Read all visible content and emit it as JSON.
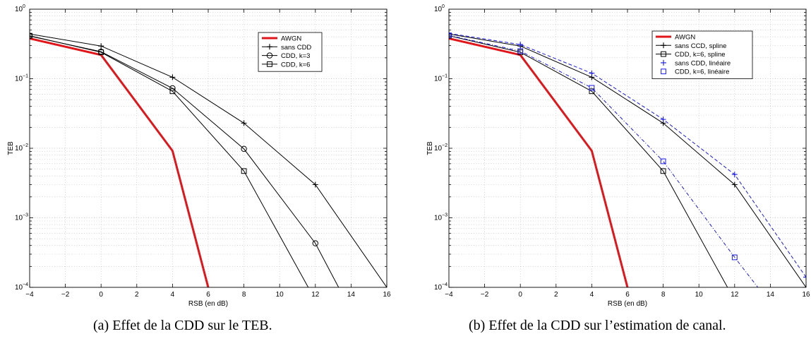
{
  "captions": {
    "a": "(a) Effet de la CDD sur le TEB.",
    "b": "(b) Effet de la CDD sur l’estimation de canal."
  },
  "chart_data": [
    {
      "type": "line",
      "xlabel": "RSB (en dB)",
      "ylabel": "TEB",
      "xlim": [
        -4,
        16
      ],
      "ylim": [
        0.0001,
        1
      ],
      "yscale": "log",
      "grid": true,
      "legend_position": "top-right",
      "xticks": [
        "−4",
        "−2",
        "0",
        "2",
        "4",
        "6",
        "8",
        "10",
        "12",
        "14",
        "16"
      ],
      "yticks": [
        {
          "base": "10",
          "exp": "0"
        },
        {
          "base": "10",
          "exp": "−1"
        },
        {
          "base": "10",
          "exp": "−2"
        },
        {
          "base": "10",
          "exp": "−3"
        },
        {
          "base": "10",
          "exp": "−4"
        }
      ],
      "series": [
        {
          "name": "AWGN",
          "color": "#e0161b",
          "marker": "none",
          "dash": "solid",
          "width": 3,
          "x": [
            -4,
            0,
            4,
            6
          ],
          "y": [
            0.38,
            0.22,
            0.0092,
            0.0001
          ]
        },
        {
          "name": "sans CDD",
          "color": "#000000",
          "marker": "plus",
          "dash": "solid",
          "width": 1,
          "x": [
            -4,
            0,
            4,
            8,
            12,
            16
          ],
          "y": [
            0.44,
            0.295,
            0.105,
            0.023,
            0.003,
            0.0001
          ]
        },
        {
          "name": "CDD, k=3",
          "color": "#000000",
          "marker": "circle",
          "dash": "solid",
          "width": 1,
          "x": [
            -4,
            0,
            4,
            8,
            12,
            13.3
          ],
          "y": [
            0.41,
            0.245,
            0.073,
            0.0098,
            0.00043,
            0.0001
          ]
        },
        {
          "name": "CDD, k=6",
          "color": "#000000",
          "marker": "square",
          "dash": "solid",
          "width": 1,
          "x": [
            -4,
            0,
            4,
            8,
            11.6
          ],
          "y": [
            0.415,
            0.24,
            0.066,
            0.0047,
            0.0001
          ]
        }
      ]
    },
    {
      "type": "line",
      "xlabel": "RSB (en dB)",
      "ylabel": "TEB",
      "xlim": [
        -4,
        16
      ],
      "ylim": [
        0.0001,
        1
      ],
      "yscale": "log",
      "grid": true,
      "legend_position": "top-right",
      "xticks": [
        "−4",
        "−2",
        "0",
        "2",
        "4",
        "6",
        "8",
        "10",
        "12",
        "14",
        "16"
      ],
      "yticks": [
        {
          "base": "10",
          "exp": "0"
        },
        {
          "base": "10",
          "exp": "−1"
        },
        {
          "base": "10",
          "exp": "−2"
        },
        {
          "base": "10",
          "exp": "−3"
        },
        {
          "base": "10",
          "exp": "−4"
        }
      ],
      "series": [
        {
          "name": "AWGN",
          "color": "#e0161b",
          "marker": "none",
          "dash": "solid",
          "width": 3,
          "x": [
            -4,
            0,
            4,
            6
          ],
          "y": [
            0.38,
            0.22,
            0.0092,
            0.0001
          ]
        },
        {
          "name": "sans CCD, spline",
          "color": "#000000",
          "marker": "plus",
          "dash": "solid",
          "width": 1,
          "x": [
            -4,
            0,
            4,
            8,
            12,
            16
          ],
          "y": [
            0.44,
            0.295,
            0.105,
            0.023,
            0.003,
            0.0001
          ]
        },
        {
          "name": "CDD, k=6, spline",
          "color": "#000000",
          "marker": "square",
          "dash": "solid",
          "width": 1,
          "x": [
            -4,
            0,
            4,
            8,
            11.6
          ],
          "y": [
            0.415,
            0.24,
            0.066,
            0.0047,
            0.0001
          ]
        },
        {
          "name": "sans CDD, linéaire",
          "color": "#1a1ae6",
          "marker": "plus",
          "dash": "dashed",
          "width": 1,
          "x": [
            -4,
            0,
            4,
            8,
            12,
            16
          ],
          "y": [
            0.45,
            0.31,
            0.12,
            0.026,
            0.0042,
            0.00014
          ]
        },
        {
          "name": "CDD, k=6, linéaire",
          "color": "#1a1ae6",
          "marker": "square",
          "dash": "dashdot",
          "width": 1,
          "x": [
            -4,
            0,
            4,
            8,
            12,
            13.3
          ],
          "y": [
            0.42,
            0.25,
            0.074,
            0.0065,
            0.00027,
            0.0001
          ]
        }
      ]
    }
  ]
}
